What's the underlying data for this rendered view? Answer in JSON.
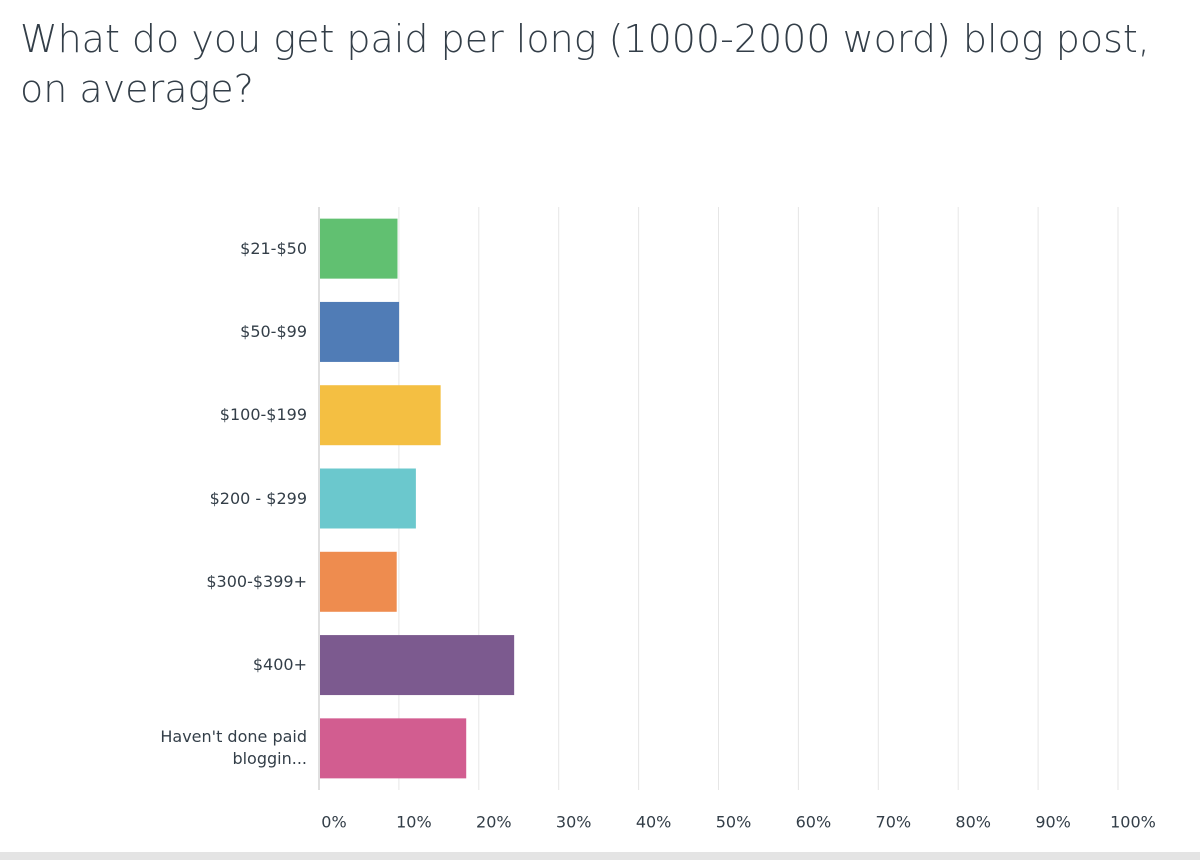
{
  "chart_data": {
    "type": "bar",
    "orientation": "horizontal",
    "title": "What do you get paid per long (1000-2000 word) blog post, on average?",
    "categories": [
      "$21-$50",
      "$50-$99",
      "$100-$199",
      "$200 - $299",
      "$300-$399+",
      "$400+",
      "Haven't done paid bloggin..."
    ],
    "values": [
      9.7,
      9.9,
      15.1,
      12.0,
      9.6,
      24.3,
      18.3
    ],
    "colors": [
      "#61c071",
      "#507cb6",
      "#f4bf42",
      "#6bc8cd",
      "#ee8c4f",
      "#7c5a8f",
      "#d25d90"
    ],
    "xlim": [
      0,
      100
    ],
    "xticks": [
      {
        "value": 0,
        "label": "0%"
      },
      {
        "value": 10,
        "label": "10%"
      },
      {
        "value": 20,
        "label": "20%"
      },
      {
        "value": 30,
        "label": "30%"
      },
      {
        "value": 40,
        "label": "40%"
      },
      {
        "value": 50,
        "label": "50%"
      },
      {
        "value": 60,
        "label": "60%"
      },
      {
        "value": 70,
        "label": "70%"
      },
      {
        "value": 80,
        "label": "80%"
      },
      {
        "value": 90,
        "label": "90%"
      },
      {
        "value": 100,
        "label": "100%"
      }
    ],
    "grid": true
  }
}
